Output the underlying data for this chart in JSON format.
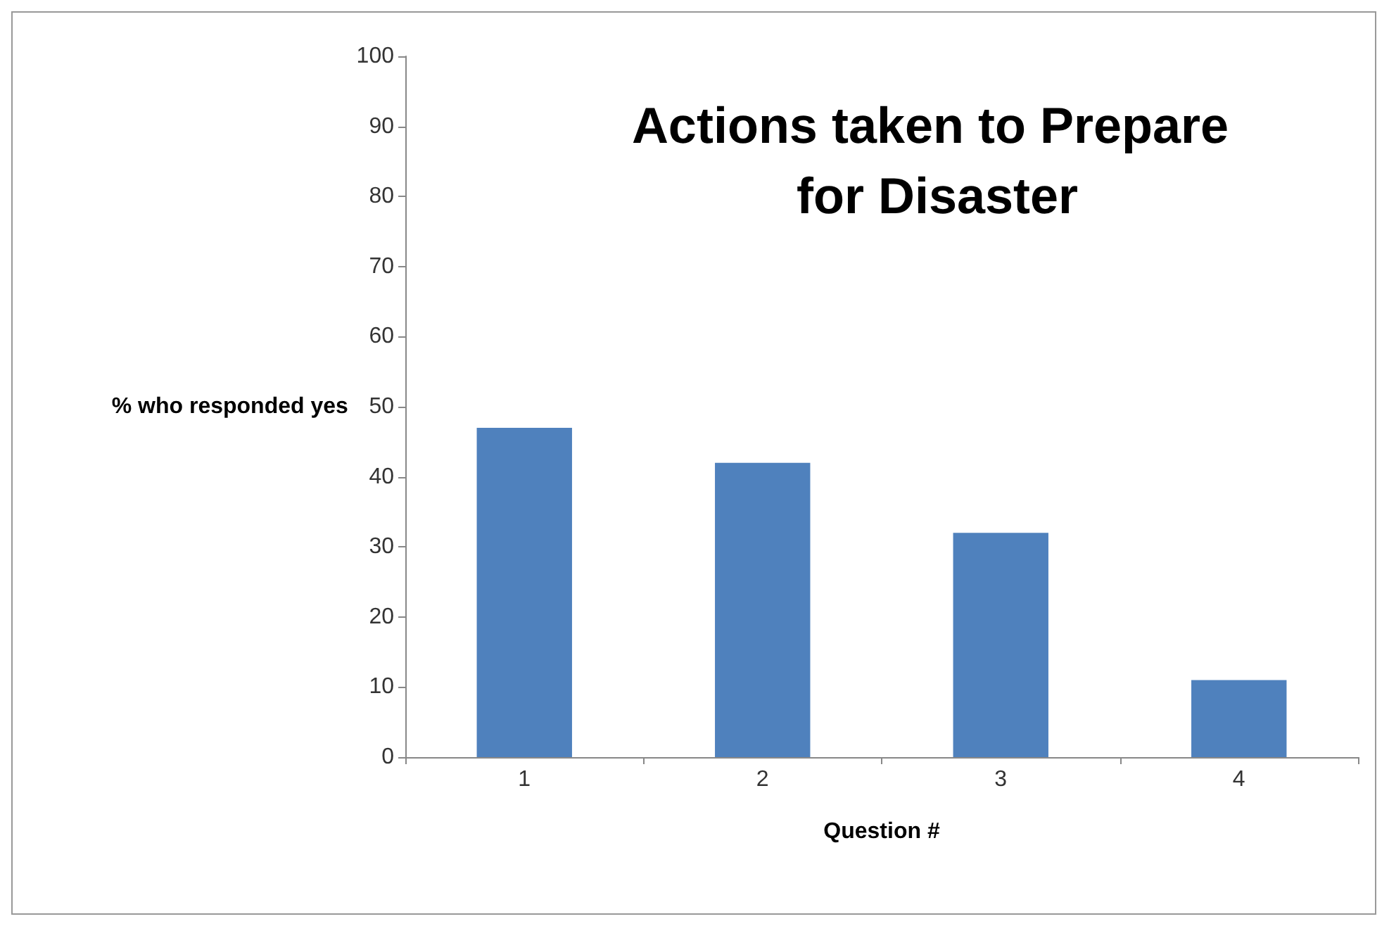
{
  "chart_data": {
    "type": "bar",
    "title": "Actions taken to Prepare for Disaster",
    "xlabel": "Question #",
    "ylabel": "% who responded yes",
    "categories": [
      "1",
      "2",
      "3",
      "4"
    ],
    "values": [
      47,
      42,
      32,
      11
    ],
    "color": "#4f81bd",
    "ylim": [
      0,
      100
    ],
    "yticks": [
      0,
      10,
      20,
      30,
      40,
      50,
      60,
      70,
      80,
      90,
      100
    ],
    "grid": false
  }
}
